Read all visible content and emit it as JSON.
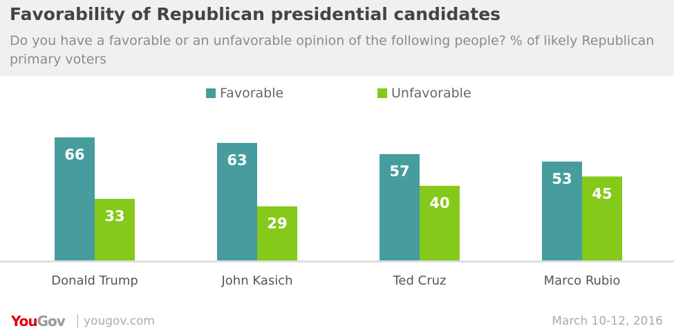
{
  "chart_data": {
    "type": "bar",
    "title": "Favorability of Republican presidential candidates",
    "subtitle": "Do you have a favorable or an unfavorable opinion of the following people? % of likely Republican primary voters",
    "categories": [
      "Donald Trump",
      "John Kasich",
      "Ted Cruz",
      "Marco Rubio"
    ],
    "series": [
      {
        "name": "Favorable",
        "values": [
          66,
          63,
          57,
          53
        ],
        "color": "#479c9e"
      },
      {
        "name": "Unfavorable",
        "values": [
          33,
          29,
          40,
          45
        ],
        "color": "#85c91b"
      }
    ],
    "ylim": [
      0,
      70
    ],
    "grid": false,
    "legend": "top-center",
    "data_labels": true
  },
  "footer": {
    "logo_you": "You",
    "logo_gov": "Gov",
    "site": "yougov.com",
    "date": "March 10-12, 2016"
  }
}
